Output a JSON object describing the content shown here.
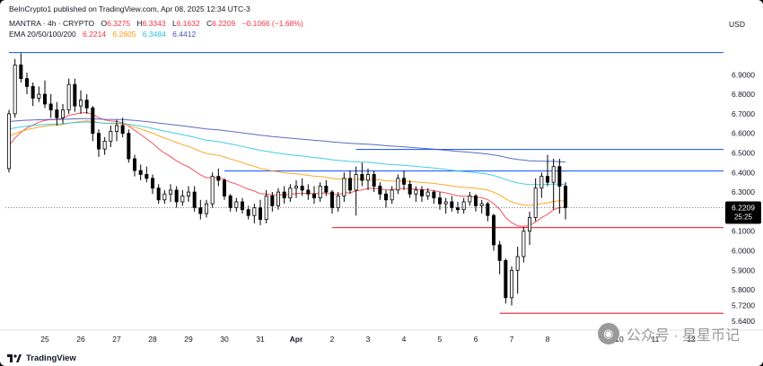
{
  "header": {
    "publisher": "BeInCrypto1 published on TradingView.com, Apr 08, 2025 12:34 UTC-3",
    "symbol": "MANTRA · 4h · CRYPTO",
    "open_label": "O",
    "open": "6.3275",
    "high_label": "H",
    "high": "6.3343",
    "low_label": "L",
    "low": "6.1632",
    "close_label": "C",
    "close": "6.2209",
    "change": "−0.1066 (−1.68%)",
    "ema_label": "EMA 20/50/100/200",
    "ema20": "6.2214",
    "ema50": "6.2605",
    "ema100": "6.3484",
    "ema200": "6.4412",
    "currency": "USD"
  },
  "footer": {
    "brand": "TradingView"
  },
  "watermark": {
    "text": "公众号 · 星星币记"
  },
  "colors": {
    "up": "#ffffff",
    "down": "#000000",
    "outline": "#000000",
    "resistance": "#2962ff",
    "support": "#f23645",
    "ema20": "#f23645",
    "ema50": "#ff9800",
    "ema100": "#22c4e0",
    "ema200": "#3f51b5"
  },
  "chart_data": {
    "type": "candlestick",
    "title": "MANTRA · 4h · CRYPTO",
    "ylim": [
      5.64,
      7.08
    ],
    "y_ticks": [
      6.9,
      6.8,
      6.7,
      6.6,
      6.5,
      6.4,
      6.3,
      6.2,
      6.1,
      6.0,
      5.9,
      5.8,
      5.72,
      5.64
    ],
    "x_ticks": [
      "25",
      "26",
      "27",
      "28",
      "29",
      "30",
      "31",
      "Apr",
      "2",
      "3",
      "4",
      "5",
      "6",
      "7",
      "8",
      "10",
      "11",
      "12"
    ],
    "x_tick_index": [
      6,
      12,
      18,
      24,
      30,
      36,
      42,
      48,
      54,
      60,
      66,
      72,
      78,
      84,
      90,
      102,
      108,
      114
    ],
    "x_range": [
      0,
      120
    ],
    "current_price": "6.2209",
    "countdown": "25:25",
    "levels": [
      {
        "label": "7.0133",
        "value": 7.0133,
        "kind": "resistance",
        "from": 0
      },
      {
        "label": "6.5180",
        "value": 6.518,
        "kind": "resistance",
        "from": 58
      },
      {
        "label": "6.4078",
        "value": 6.4078,
        "kind": "resistance",
        "from": 36
      },
      {
        "label": "6.1187",
        "value": 6.1187,
        "kind": "support",
        "from": 54
      },
      {
        "label": "5.6802",
        "value": 5.6802,
        "kind": "support",
        "from": 82
      }
    ],
    "candles": [
      [
        6.42,
        6.72,
        6.4,
        6.7
      ],
      [
        6.7,
        6.98,
        6.68,
        6.95
      ],
      [
        6.95,
        7.01,
        6.86,
        6.88
      ],
      [
        6.88,
        6.91,
        6.8,
        6.84
      ],
      [
        6.84,
        6.86,
        6.74,
        6.78
      ],
      [
        6.78,
        6.84,
        6.76,
        6.8
      ],
      [
        6.8,
        6.87,
        6.73,
        6.75
      ],
      [
        6.75,
        6.8,
        6.68,
        6.72
      ],
      [
        6.72,
        6.76,
        6.64,
        6.68
      ],
      [
        6.68,
        6.75,
        6.65,
        6.72
      ],
      [
        6.72,
        6.88,
        6.7,
        6.85
      ],
      [
        6.85,
        6.88,
        6.71,
        6.74
      ],
      [
        6.74,
        6.82,
        6.7,
        6.77
      ],
      [
        6.77,
        6.8,
        6.7,
        6.73
      ],
      [
        6.73,
        6.74,
        6.56,
        6.6
      ],
      [
        6.6,
        6.62,
        6.48,
        6.52
      ],
      [
        6.52,
        6.58,
        6.49,
        6.56
      ],
      [
        6.56,
        6.64,
        6.53,
        6.61
      ],
      [
        6.61,
        6.67,
        6.56,
        6.64
      ],
      [
        6.64,
        6.68,
        6.58,
        6.6
      ],
      [
        6.6,
        6.62,
        6.45,
        6.47
      ],
      [
        6.47,
        6.49,
        6.38,
        6.41
      ],
      [
        6.41,
        6.44,
        6.36,
        6.39
      ],
      [
        6.39,
        6.43,
        6.35,
        6.37
      ],
      [
        6.37,
        6.39,
        6.29,
        6.32
      ],
      [
        6.32,
        6.34,
        6.24,
        6.26
      ],
      [
        6.26,
        6.31,
        6.24,
        6.29
      ],
      [
        6.29,
        6.34,
        6.25,
        6.31
      ],
      [
        6.31,
        6.33,
        6.22,
        6.25
      ],
      [
        6.25,
        6.31,
        6.23,
        6.28
      ],
      [
        6.28,
        6.33,
        6.25,
        6.3
      ],
      [
        6.3,
        6.33,
        6.2,
        6.22
      ],
      [
        6.22,
        6.26,
        6.16,
        6.19
      ],
      [
        6.19,
        6.26,
        6.17,
        6.24
      ],
      [
        6.24,
        6.4,
        6.22,
        6.38
      ],
      [
        6.38,
        6.42,
        6.33,
        6.36
      ],
      [
        6.36,
        6.37,
        6.26,
        6.28
      ],
      [
        6.28,
        6.29,
        6.2,
        6.22
      ],
      [
        6.22,
        6.27,
        6.2,
        6.25
      ],
      [
        6.25,
        6.27,
        6.19,
        6.21
      ],
      [
        6.21,
        6.23,
        6.16,
        6.18
      ],
      [
        6.18,
        6.24,
        6.14,
        6.22
      ],
      [
        6.22,
        6.26,
        6.13,
        6.16
      ],
      [
        6.16,
        6.31,
        6.14,
        6.28
      ],
      [
        6.28,
        6.3,
        6.2,
        6.23
      ],
      [
        6.23,
        6.32,
        6.21,
        6.3
      ],
      [
        6.3,
        6.33,
        6.24,
        6.27
      ],
      [
        6.27,
        6.34,
        6.25,
        6.32
      ],
      [
        6.32,
        6.36,
        6.27,
        6.33
      ],
      [
        6.33,
        6.37,
        6.28,
        6.31
      ],
      [
        6.31,
        6.34,
        6.26,
        6.29
      ],
      [
        6.29,
        6.33,
        6.24,
        6.27
      ],
      [
        6.27,
        6.35,
        6.25,
        6.33
      ],
      [
        6.33,
        6.36,
        6.28,
        6.3
      ],
      [
        6.3,
        6.31,
        6.19,
        6.22
      ],
      [
        6.22,
        6.3,
        6.2,
        6.28
      ],
      [
        6.28,
        6.4,
        6.25,
        6.37
      ],
      [
        6.37,
        6.41,
        6.29,
        6.31
      ],
      [
        6.31,
        6.43,
        6.18,
        6.39
      ],
      [
        6.39,
        6.45,
        6.33,
        6.36
      ],
      [
        6.36,
        6.42,
        6.31,
        6.39
      ],
      [
        6.39,
        6.41,
        6.3,
        6.33
      ],
      [
        6.33,
        6.35,
        6.26,
        6.29
      ],
      [
        6.29,
        6.31,
        6.22,
        6.26
      ],
      [
        6.26,
        6.33,
        6.24,
        6.31
      ],
      [
        6.31,
        6.39,
        6.29,
        6.37
      ],
      [
        6.37,
        6.41,
        6.31,
        6.34
      ],
      [
        6.34,
        6.36,
        6.27,
        6.29
      ],
      [
        6.29,
        6.33,
        6.25,
        6.31
      ],
      [
        6.31,
        6.33,
        6.25,
        6.28
      ],
      [
        6.28,
        6.32,
        6.26,
        6.3
      ],
      [
        6.3,
        6.31,
        6.24,
        6.27
      ],
      [
        6.27,
        6.3,
        6.21,
        6.24
      ],
      [
        6.24,
        6.27,
        6.19,
        6.25
      ],
      [
        6.25,
        6.28,
        6.2,
        6.22
      ],
      [
        6.22,
        6.25,
        6.19,
        6.21
      ],
      [
        6.21,
        6.27,
        6.19,
        6.25
      ],
      [
        6.25,
        6.3,
        6.23,
        6.28
      ],
      [
        6.28,
        6.29,
        6.2,
        6.23
      ],
      [
        6.23,
        6.26,
        6.19,
        6.24
      ],
      [
        6.24,
        6.25,
        6.15,
        6.18
      ],
      [
        6.18,
        6.19,
        6.0,
        6.03
      ],
      [
        6.03,
        6.05,
        5.88,
        5.95
      ],
      [
        5.95,
        5.96,
        5.73,
        5.76
      ],
      [
        5.76,
        5.92,
        5.72,
        5.9
      ],
      [
        5.9,
        6.02,
        5.78,
        5.97
      ],
      [
        5.97,
        6.12,
        5.94,
        6.1
      ],
      [
        6.1,
        6.2,
        6.03,
        6.17
      ],
      [
        6.17,
        6.37,
        6.15,
        6.32
      ],
      [
        6.32,
        6.4,
        6.27,
        6.38
      ],
      [
        6.38,
        6.49,
        6.33,
        6.35
      ],
      [
        6.35,
        6.47,
        6.21,
        6.43
      ],
      [
        6.43,
        6.47,
        6.19,
        6.33
      ],
      [
        6.33,
        6.35,
        6.16,
        6.22
      ]
    ],
    "ema": [
      {
        "name": "EMA 20",
        "period": 20,
        "seed": 6.52
      },
      {
        "name": "EMA 50",
        "period": 50,
        "seed": 6.58
      },
      {
        "name": "EMA 100",
        "period": 100,
        "seed": 6.62
      },
      {
        "name": "EMA 200",
        "period": 200,
        "seed": 6.66
      }
    ]
  }
}
